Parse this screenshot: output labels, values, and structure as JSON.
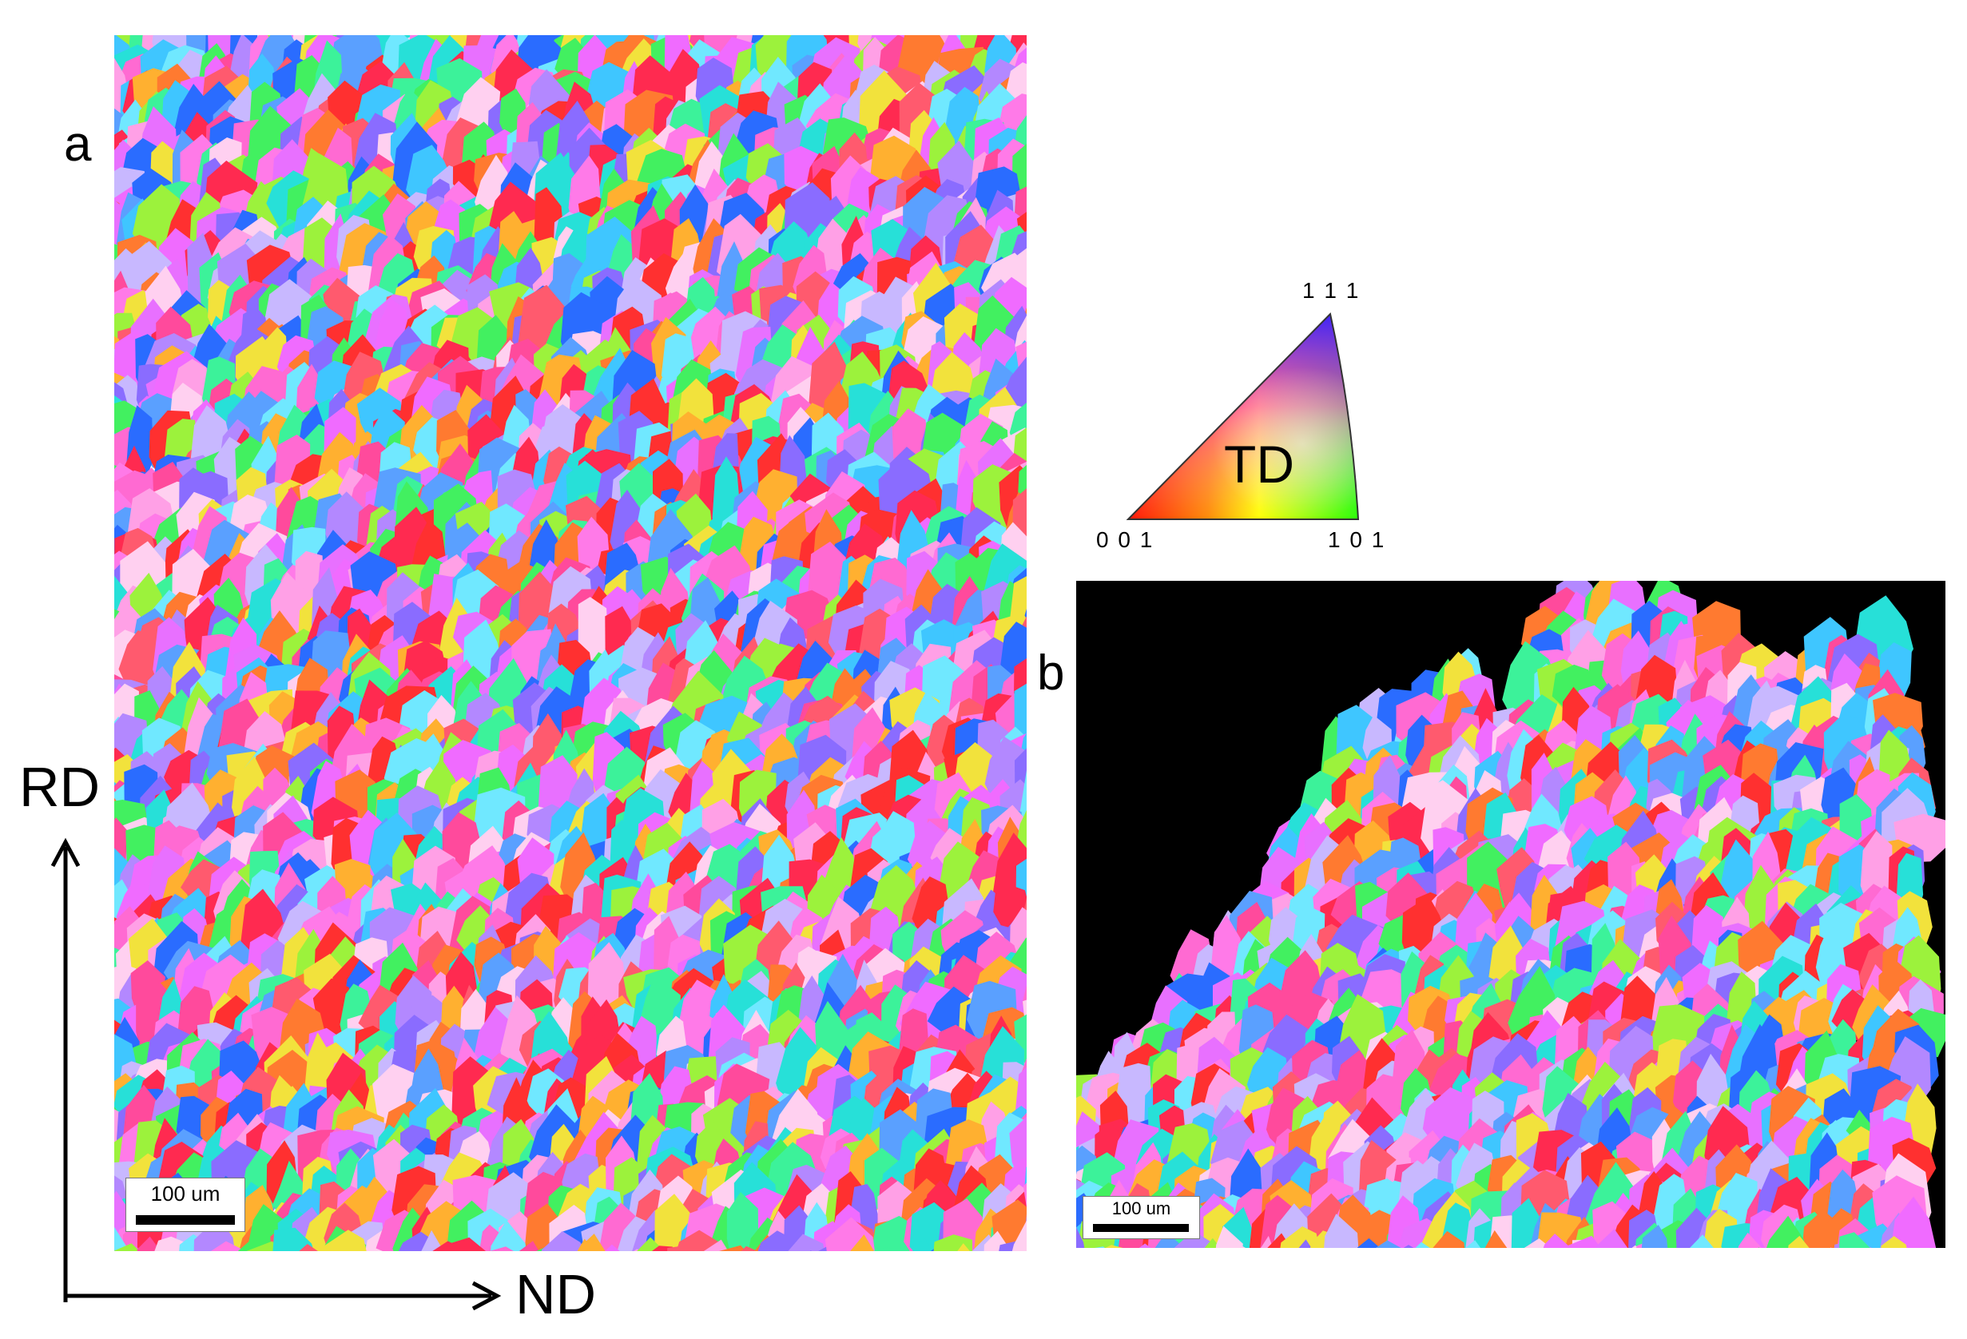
{
  "panels": {
    "a": {
      "letter": "a",
      "scale_text": "100 um"
    },
    "b": {
      "letter": "b",
      "scale_text": "100 um"
    }
  },
  "axes": {
    "vertical_label": "RD",
    "horizontal_label": "ND"
  },
  "legend": {
    "center_label": "TD",
    "corner_top": "1 1 1",
    "corner_left": "0 0 1",
    "corner_right": "1 0 1"
  },
  "colors": {
    "ipf_001": "#ff0000",
    "ipf_101": "#00ff00",
    "ipf_111": "#0000ff",
    "background_b": "#000000"
  }
}
